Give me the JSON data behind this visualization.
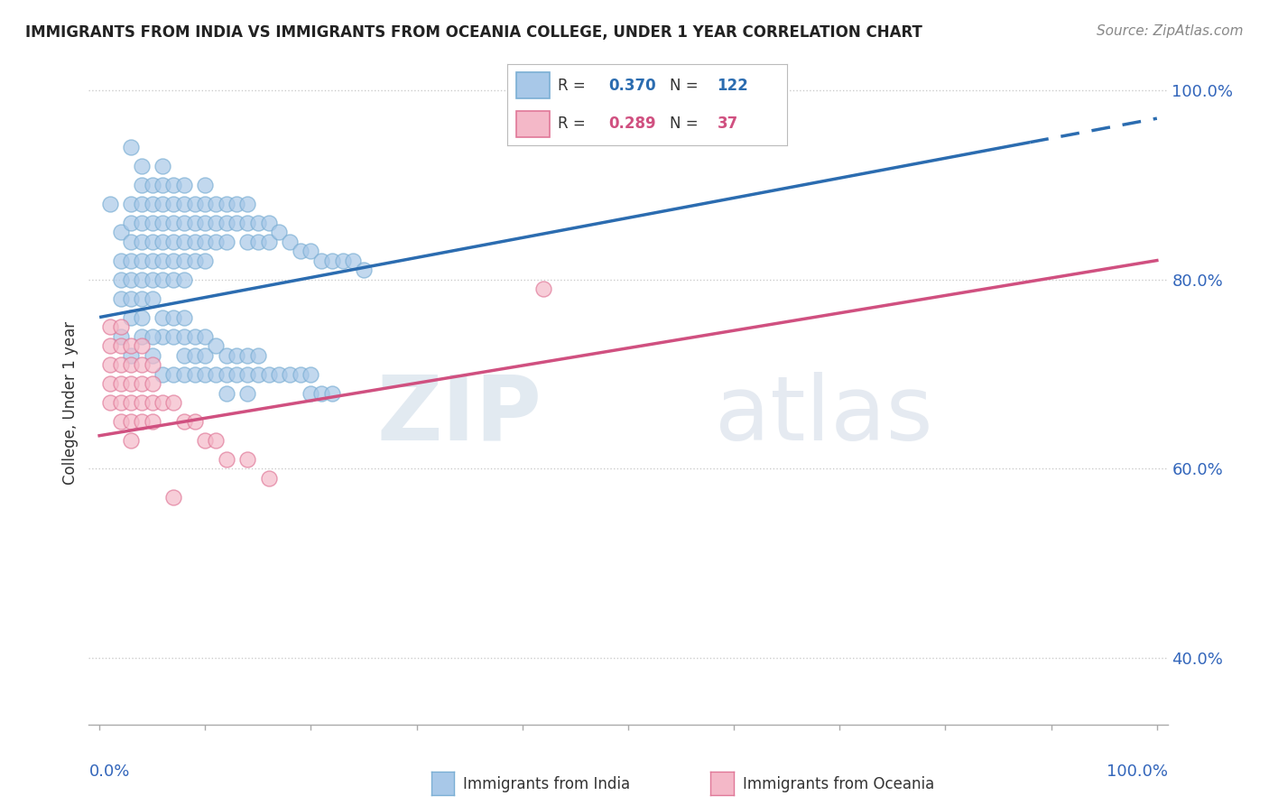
{
  "title": "IMMIGRANTS FROM INDIA VS IMMIGRANTS FROM OCEANIA COLLEGE, UNDER 1 YEAR CORRELATION CHART",
  "source": "Source: ZipAtlas.com",
  "ylabel": "College, Under 1 year",
  "legend_india": {
    "R": "0.370",
    "N": "122"
  },
  "legend_oceania": {
    "R": "0.289",
    "N": "37"
  },
  "color_india": "#a8c8e8",
  "color_india_edge": "#7bafd4",
  "color_oceania": "#f4b8c8",
  "color_oceania_edge": "#e07898",
  "line_india": "#2b6cb0",
  "line_oceania": "#d05080",
  "india_scatter": [
    [
      0.01,
      0.88
    ],
    [
      0.02,
      0.85
    ],
    [
      0.02,
      0.82
    ],
    [
      0.02,
      0.8
    ],
    [
      0.02,
      0.78
    ],
    [
      0.03,
      0.88
    ],
    [
      0.03,
      0.86
    ],
    [
      0.03,
      0.84
    ],
    [
      0.03,
      0.82
    ],
    [
      0.03,
      0.8
    ],
    [
      0.03,
      0.78
    ],
    [
      0.03,
      0.76
    ],
    [
      0.04,
      0.9
    ],
    [
      0.04,
      0.88
    ],
    [
      0.04,
      0.86
    ],
    [
      0.04,
      0.84
    ],
    [
      0.04,
      0.82
    ],
    [
      0.04,
      0.8
    ],
    [
      0.04,
      0.78
    ],
    [
      0.04,
      0.76
    ],
    [
      0.05,
      0.9
    ],
    [
      0.05,
      0.88
    ],
    [
      0.05,
      0.86
    ],
    [
      0.05,
      0.84
    ],
    [
      0.05,
      0.82
    ],
    [
      0.05,
      0.8
    ],
    [
      0.05,
      0.78
    ],
    [
      0.06,
      0.92
    ],
    [
      0.06,
      0.9
    ],
    [
      0.06,
      0.88
    ],
    [
      0.06,
      0.86
    ],
    [
      0.06,
      0.84
    ],
    [
      0.06,
      0.82
    ],
    [
      0.06,
      0.8
    ],
    [
      0.07,
      0.9
    ],
    [
      0.07,
      0.88
    ],
    [
      0.07,
      0.86
    ],
    [
      0.07,
      0.84
    ],
    [
      0.07,
      0.82
    ],
    [
      0.07,
      0.8
    ],
    [
      0.08,
      0.9
    ],
    [
      0.08,
      0.88
    ],
    [
      0.08,
      0.86
    ],
    [
      0.08,
      0.84
    ],
    [
      0.08,
      0.82
    ],
    [
      0.08,
      0.8
    ],
    [
      0.09,
      0.88
    ],
    [
      0.09,
      0.86
    ],
    [
      0.09,
      0.84
    ],
    [
      0.09,
      0.82
    ],
    [
      0.1,
      0.9
    ],
    [
      0.1,
      0.88
    ],
    [
      0.1,
      0.86
    ],
    [
      0.1,
      0.84
    ],
    [
      0.1,
      0.82
    ],
    [
      0.11,
      0.88
    ],
    [
      0.11,
      0.86
    ],
    [
      0.11,
      0.84
    ],
    [
      0.12,
      0.88
    ],
    [
      0.12,
      0.86
    ],
    [
      0.12,
      0.84
    ],
    [
      0.13,
      0.88
    ],
    [
      0.13,
      0.86
    ],
    [
      0.14,
      0.88
    ],
    [
      0.14,
      0.86
    ],
    [
      0.14,
      0.84
    ],
    [
      0.15,
      0.86
    ],
    [
      0.15,
      0.84
    ],
    [
      0.16,
      0.86
    ],
    [
      0.16,
      0.84
    ],
    [
      0.17,
      0.85
    ],
    [
      0.18,
      0.84
    ],
    [
      0.19,
      0.83
    ],
    [
      0.2,
      0.83
    ],
    [
      0.21,
      0.82
    ],
    [
      0.22,
      0.82
    ],
    [
      0.23,
      0.82
    ],
    [
      0.24,
      0.82
    ],
    [
      0.25,
      0.81
    ],
    [
      0.06,
      0.76
    ],
    [
      0.06,
      0.74
    ],
    [
      0.07,
      0.76
    ],
    [
      0.07,
      0.74
    ],
    [
      0.08,
      0.76
    ],
    [
      0.08,
      0.74
    ],
    [
      0.08,
      0.72
    ],
    [
      0.09,
      0.74
    ],
    [
      0.09,
      0.72
    ],
    [
      0.1,
      0.74
    ],
    [
      0.1,
      0.72
    ],
    [
      0.11,
      0.73
    ],
    [
      0.12,
      0.72
    ],
    [
      0.13,
      0.72
    ],
    [
      0.14,
      0.72
    ],
    [
      0.15,
      0.72
    ],
    [
      0.03,
      0.94
    ],
    [
      0.04,
      0.92
    ],
    [
      0.02,
      0.74
    ],
    [
      0.03,
      0.72
    ],
    [
      0.04,
      0.74
    ],
    [
      0.05,
      0.74
    ],
    [
      0.05,
      0.72
    ],
    [
      0.06,
      0.7
    ],
    [
      0.07,
      0.7
    ],
    [
      0.08,
      0.7
    ],
    [
      0.09,
      0.7
    ],
    [
      0.1,
      0.7
    ],
    [
      0.11,
      0.7
    ],
    [
      0.12,
      0.7
    ],
    [
      0.13,
      0.7
    ],
    [
      0.14,
      0.7
    ],
    [
      0.15,
      0.7
    ],
    [
      0.16,
      0.7
    ],
    [
      0.17,
      0.7
    ],
    [
      0.18,
      0.7
    ],
    [
      0.19,
      0.7
    ],
    [
      0.2,
      0.7
    ],
    [
      0.2,
      0.68
    ],
    [
      0.21,
      0.68
    ],
    [
      0.22,
      0.68
    ],
    [
      0.12,
      0.68
    ],
    [
      0.14,
      0.68
    ]
  ],
  "oceania_scatter": [
    [
      0.01,
      0.75
    ],
    [
      0.01,
      0.73
    ],
    [
      0.01,
      0.71
    ],
    [
      0.01,
      0.69
    ],
    [
      0.01,
      0.67
    ],
    [
      0.02,
      0.75
    ],
    [
      0.02,
      0.73
    ],
    [
      0.02,
      0.71
    ],
    [
      0.02,
      0.69
    ],
    [
      0.02,
      0.67
    ],
    [
      0.02,
      0.65
    ],
    [
      0.03,
      0.73
    ],
    [
      0.03,
      0.71
    ],
    [
      0.03,
      0.69
    ],
    [
      0.03,
      0.67
    ],
    [
      0.03,
      0.65
    ],
    [
      0.03,
      0.63
    ],
    [
      0.04,
      0.73
    ],
    [
      0.04,
      0.71
    ],
    [
      0.04,
      0.69
    ],
    [
      0.04,
      0.67
    ],
    [
      0.04,
      0.65
    ],
    [
      0.05,
      0.71
    ],
    [
      0.05,
      0.69
    ],
    [
      0.05,
      0.67
    ],
    [
      0.05,
      0.65
    ],
    [
      0.06,
      0.67
    ],
    [
      0.07,
      0.67
    ],
    [
      0.08,
      0.65
    ],
    [
      0.09,
      0.65
    ],
    [
      0.1,
      0.63
    ],
    [
      0.11,
      0.63
    ],
    [
      0.12,
      0.61
    ],
    [
      0.14,
      0.61
    ],
    [
      0.16,
      0.59
    ],
    [
      0.07,
      0.57
    ],
    [
      0.42,
      0.79
    ]
  ],
  "india_line_x": [
    0.0,
    1.0
  ],
  "india_line_y": [
    0.76,
    0.97
  ],
  "india_line_solid_end": 0.88,
  "oceania_line_x": [
    0.0,
    1.0
  ],
  "oceania_line_y": [
    0.635,
    0.82
  ],
  "xlim": [
    -0.01,
    1.01
  ],
  "ylim": [
    0.33,
    1.01
  ],
  "yticks": [
    0.4,
    0.6,
    0.8,
    1.0
  ],
  "ytick_labels": [
    "40.0%",
    "60.0%",
    "80.0%",
    "100.0%"
  ],
  "watermark_zip": "ZIP",
  "watermark_atlas": "atlas"
}
